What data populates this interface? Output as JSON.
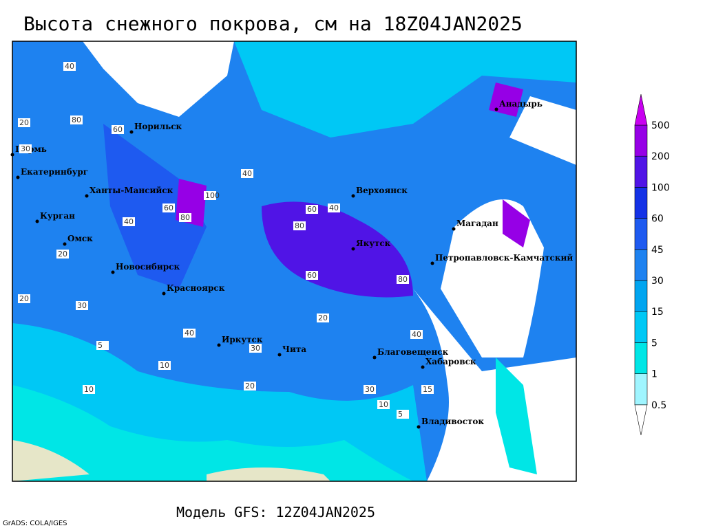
{
  "title": "Высота снежного покрова, см на 18Z04JAN2025",
  "footer": "Модель GFS: 12Z04JAN2025",
  "credit": "GrADS: COLA/IGES",
  "cities": [
    "Норильск",
    "Пермь",
    "Екатеринбург",
    "Ханты-Мансийск",
    "Курган",
    "Омск",
    "Новосибирск",
    "Красноярск",
    "Иркутск",
    "Чита",
    "Верхоянск",
    "Якутск",
    "Магадан",
    "Петропавловск-Камчатский",
    "Анадырь",
    "Благовещенск",
    "Хабаровск",
    "Владивосток"
  ],
  "contour_labels": [
    40,
    80,
    60,
    20,
    30,
    100,
    40,
    60,
    80,
    40,
    80,
    60,
    40,
    20,
    10,
    30,
    20,
    5,
    10,
    20,
    40,
    30,
    80,
    10,
    5,
    20,
    30,
    40,
    15,
    60
  ],
  "colorbar": {
    "levels": [
      0.5,
      1,
      5,
      15,
      30,
      45,
      60,
      100,
      200,
      500
    ],
    "colors": [
      "#ffffff",
      "#a0f5ff",
      "#00e6e6",
      "#00c8f5",
      "#00a5f0",
      "#1e82f0",
      "#1e5af0",
      "#1432e6",
      "#5014e6",
      "#9600e6",
      "#c800f0"
    ]
  }
}
